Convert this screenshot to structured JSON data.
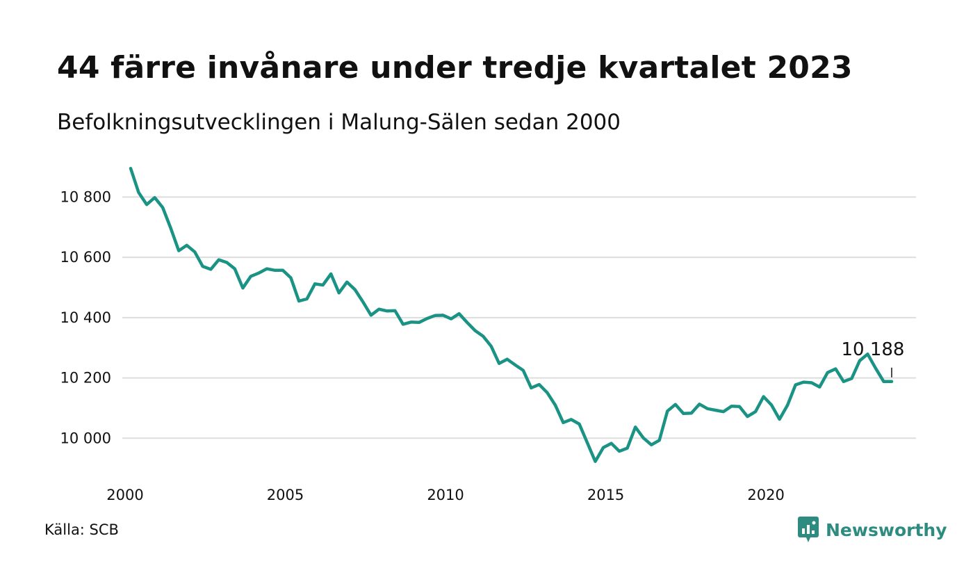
{
  "header": {
    "title": "44 färre invånare under tredje kvartalet 2023",
    "subtitle": "Befolkningsutvecklingen i Malung-Sälen sedan 2000"
  },
  "footer": {
    "source": "Källa: SCB",
    "brand": "Newsworthy"
  },
  "colors": {
    "line": "#1a9385",
    "grid": "#dddddd",
    "brand": "#2e8b80"
  },
  "chart_data": {
    "type": "line",
    "title": "44 färre invånare under tredje kvartalet 2023",
    "subtitle": "Befolkningsutvecklingen i Malung-Sälen sedan 2000",
    "xlabel": "",
    "ylabel": "",
    "xlim": [
      2000,
      2023.75
    ],
    "ylim": [
      9920,
      10900
    ],
    "x_ticks": [
      2000,
      2005,
      2010,
      2015,
      2020
    ],
    "y_ticks": [
      10000,
      10200,
      10400,
      10600,
      10800
    ],
    "y_tick_labels": [
      "10 000",
      "10 200",
      "10 400",
      "10 600",
      "10 800"
    ],
    "grid": "horizontal",
    "end_label": "10 188",
    "series": [
      {
        "x": [
          2000.0,
          2000.25,
          2000.5,
          2000.75,
          2001.0,
          2001.25,
          2001.5,
          2001.75,
          2002.0,
          2002.25,
          2002.5,
          2002.75,
          2003.0,
          2003.25,
          2003.5,
          2003.75,
          2004.0,
          2004.25,
          2004.5,
          2004.75,
          2005.0,
          2005.25,
          2005.5,
          2005.75,
          2006.0,
          2006.25,
          2006.5,
          2006.75,
          2007.0,
          2007.25,
          2007.5,
          2007.75,
          2008.0,
          2008.25,
          2008.5,
          2008.75,
          2009.0,
          2009.25,
          2009.5,
          2009.75,
          2010.0,
          2010.25,
          2010.5,
          2010.75,
          2011.0,
          2011.25,
          2011.5,
          2011.75,
          2012.0,
          2012.25,
          2012.5,
          2012.75,
          2013.0,
          2013.25,
          2013.5,
          2013.75,
          2014.0,
          2014.25,
          2014.5,
          2014.75,
          2015.0,
          2015.25,
          2015.5,
          2015.75,
          2016.0,
          2016.25,
          2016.5,
          2016.75,
          2017.0,
          2017.25,
          2017.5,
          2017.75,
          2018.0,
          2018.25,
          2018.5,
          2018.75,
          2019.0,
          2019.25,
          2019.5,
          2019.75,
          2020.0,
          2020.25,
          2020.5,
          2020.75,
          2021.0,
          2021.25,
          2021.5,
          2021.75,
          2022.0,
          2022.25,
          2022.5,
          2022.75,
          2023.0,
          2023.25,
          2023.5,
          2023.75
        ],
        "values": [
          10895,
          10815,
          10775,
          10798,
          10765,
          10697,
          10622,
          10640,
          10618,
          10570,
          10560,
          10592,
          10583,
          10562,
          10498,
          10537,
          10548,
          10562,
          10557,
          10557,
          10532,
          10455,
          10462,
          10512,
          10508,
          10545,
          10482,
          10518,
          10493,
          10452,
          10408,
          10428,
          10422,
          10423,
          10378,
          10385,
          10384,
          10397,
          10407,
          10408,
          10396,
          10413,
          10384,
          10357,
          10338,
          10305,
          10248,
          10262,
          10243,
          10225,
          10167,
          10178,
          10151,
          10110,
          10052,
          10062,
          10047,
          9985,
          9923,
          9969,
          9983,
          9957,
          9967,
          10037,
          10001,
          9978,
          9993,
          10090,
          10112,
          10082,
          10083,
          10113,
          10098,
          10093,
          10088,
          10106,
          10105,
          10072,
          10088,
          10138,
          10110,
          10063,
          10110,
          10177,
          10186,
          10184,
          10170,
          10218,
          10230,
          10188,
          10198,
          10257,
          10279,
          10232,
          10188,
          10188
        ]
      }
    ]
  }
}
